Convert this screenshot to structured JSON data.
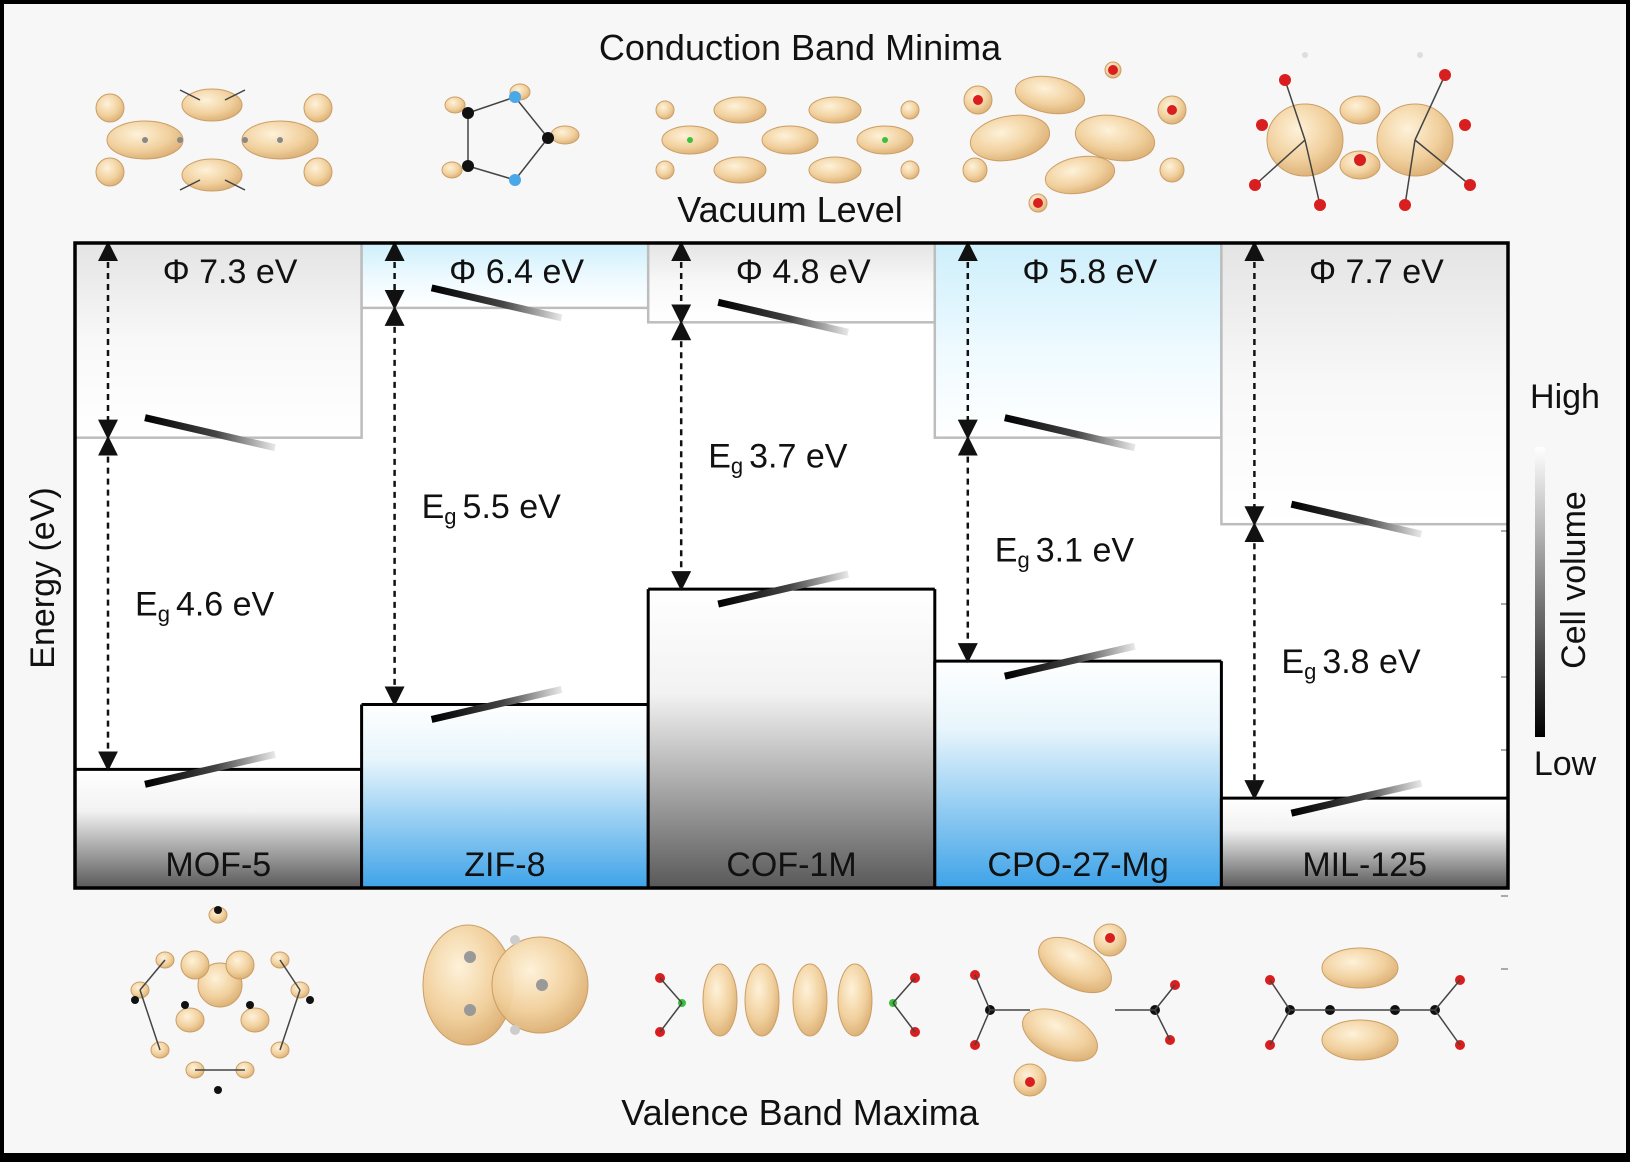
{
  "headings": {
    "cbm": "Conduction Band Minima",
    "vacuum": "Vacuum Level",
    "vbm": "Valence Band Maxima",
    "y_axis": "Energy (eV)",
    "colorbar_title": "Cell volume",
    "colorbar_high": "High",
    "colorbar_low": "Low"
  },
  "colors": {
    "gray_cell": "#595959",
    "blue_cell": "#3ea3e8",
    "light_blue": "#d8f3fc",
    "isosurface": "#f1cf9a",
    "oxygen": "#d81e1e",
    "carbon": "#111111",
    "nitrogen": "#4aa8e8",
    "boron": "#39c13b"
  },
  "materials": [
    {
      "name": "MOF-5",
      "work_function": "Φ 7.3 eV",
      "gap": "4.6 eV",
      "gap_symbol": "E",
      "gap_sub": "g",
      "phi": 7.3,
      "eg": 4.6,
      "theme": "gray"
    },
    {
      "name": "ZIF-8",
      "work_function": "Φ 6.4 eV",
      "gap": "5.5 eV",
      "gap_symbol": "E",
      "gap_sub": "g",
      "phi": 6.4,
      "eg": 5.5,
      "theme": "blue"
    },
    {
      "name": "COF-1M",
      "work_function": "Φ 4.8 eV",
      "gap": "3.7 eV",
      "gap_symbol": "E",
      "gap_sub": "g",
      "phi": 4.8,
      "eg": 3.7,
      "theme": "gray"
    },
    {
      "name": "CPO-27-Mg",
      "work_function": "Φ 5.8 eV",
      "gap": "3.1 eV",
      "gap_symbol": "E",
      "gap_sub": "g",
      "phi": 5.8,
      "eg": 3.1,
      "theme": "blue"
    },
    {
      "name": "MIL-125",
      "work_function": "Φ 7.7 eV",
      "gap": "3.8 eV",
      "gap_symbol": "E",
      "gap_sub": "g",
      "phi": 7.7,
      "eg": 3.8,
      "theme": "gray"
    }
  ]
}
